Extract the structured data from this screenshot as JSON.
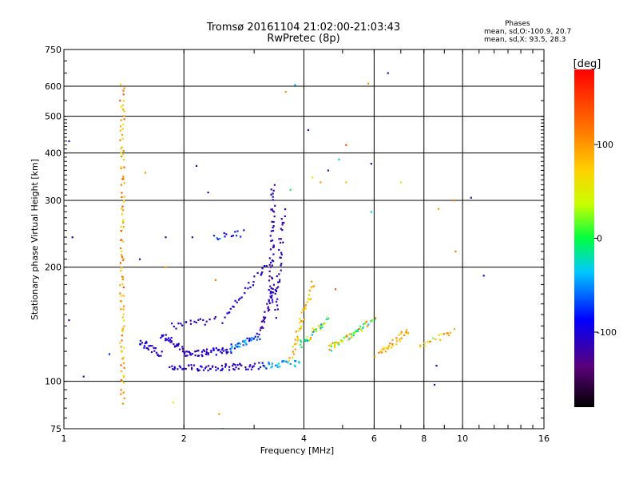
{
  "chart_data": {
    "type": "scatter",
    "title": "Tromsø 20161104 21:02:00-21:03:43",
    "subtitle": "RwPretec (8p)",
    "xlabel": "Frequency [MHz]",
    "ylabel": "Stationary phase Virtual Height [km]",
    "x_scale": "log",
    "y_scale": "log",
    "xlim": [
      1,
      16
    ],
    "ylim": [
      75,
      750
    ],
    "x_ticks": [
      1,
      2,
      4,
      6,
      8,
      10,
      16
    ],
    "y_ticks": [
      75,
      100,
      200,
      300,
      400,
      500,
      600,
      750
    ],
    "grid": true,
    "colorbar": {
      "label": "[deg]",
      "range": [
        -180,
        180
      ],
      "ticks": [
        100,
        0,
        -100
      ]
    },
    "stats": {
      "heading": "Phases",
      "line1": "mean, sd,O:-100.9, 20.7",
      "line2": "mean, sd,X: 93.5, 28.3"
    },
    "segments": [
      {
        "f": [
          1.4,
          1.4
        ],
        "h": [
          88,
          600
        ],
        "phase": [
          40,
          140
        ],
        "n": 110
      },
      {
        "f": [
          1.55,
          1.75
        ],
        "h": [
          128,
          118
        ],
        "phase": [
          -120,
          -80
        ],
        "n": 25
      },
      {
        "f": [
          1.75,
          2.05
        ],
        "h": [
          133,
          118
        ],
        "phase": [
          -125,
          -90
        ],
        "n": 35
      },
      {
        "f": [
          2.05,
          2.6
        ],
        "h": [
          118,
          121
        ],
        "phase": [
          -125,
          -90
        ],
        "n": 45
      },
      {
        "f": [
          2.6,
          3.1
        ],
        "h": [
          122,
          132
        ],
        "phase": [
          -100,
          -30
        ],
        "n": 35
      },
      {
        "f": [
          3.1,
          3.4
        ],
        "h": [
          135,
          180
        ],
        "phase": [
          -130,
          -100
        ],
        "n": 30
      },
      {
        "f": [
          3.3,
          3.35
        ],
        "h": [
          160,
          330
        ],
        "phase": [
          -130,
          -100
        ],
        "n": 45
      },
      {
        "f": [
          3.4,
          3.55
        ],
        "h": [
          150,
          280
        ],
        "phase": [
          -125,
          -95
        ],
        "n": 35
      },
      {
        "f": [
          1.85,
          3.2
        ],
        "h": [
          108,
          110
        ],
        "phase": [
          -125,
          -85
        ],
        "n": 75
      },
      {
        "f": [
          3.2,
          3.9
        ],
        "h": [
          110,
          112
        ],
        "phase": [
          -60,
          -20
        ],
        "n": 25
      },
      {
        "f": [
          1.85,
          2.4
        ],
        "h": [
          140,
          145
        ],
        "phase": [
          -125,
          -95
        ],
        "n": 20
      },
      {
        "f": [
          2.5,
          3.3
        ],
        "h": [
          145,
          210
        ],
        "phase": [
          -120,
          -90
        ],
        "n": 30
      },
      {
        "f": [
          2.4,
          2.8
        ],
        "h": [
          240,
          246
        ],
        "phase": [
          -110,
          -40
        ],
        "n": 14
      },
      {
        "f": [
          3.7,
          4.2
        ],
        "h": [
          115,
          180
        ],
        "phase": [
          60,
          110
        ],
        "n": 40
      },
      {
        "f": [
          3.9,
          4.6
        ],
        "h": [
          125,
          145
        ],
        "phase": [
          -60,
          110
        ],
        "n": 35
      },
      {
        "f": [
          4.6,
          6.0
        ],
        "h": [
          122,
          145
        ],
        "phase": [
          -40,
          120
        ],
        "n": 55
      },
      {
        "f": [
          6.1,
          7.3
        ],
        "h": [
          118,
          135
        ],
        "phase": [
          60,
          120
        ],
        "n": 35
      },
      {
        "f": [
          7.8,
          9.5
        ],
        "h": [
          125,
          135
        ],
        "phase": [
          20,
          120
        ],
        "n": 18
      }
    ],
    "points": [
      {
        "f": 1.03,
        "h": 430,
        "phase": -120
      },
      {
        "f": 1.05,
        "h": 240,
        "phase": -110
      },
      {
        "f": 1.03,
        "h": 145,
        "phase": -120
      },
      {
        "f": 1.12,
        "h": 103,
        "phase": -110
      },
      {
        "f": 1.55,
        "h": 210,
        "phase": -110
      },
      {
        "f": 1.6,
        "h": 355,
        "phase": 100
      },
      {
        "f": 1.8,
        "h": 240,
        "phase": -120
      },
      {
        "f": 1.88,
        "h": 88,
        "phase": 40
      },
      {
        "f": 2.1,
        "h": 240,
        "phase": -120
      },
      {
        "f": 2.3,
        "h": 315,
        "phase": -115
      },
      {
        "f": 2.45,
        "h": 82,
        "phase": 100
      },
      {
        "f": 2.5,
        "h": 75,
        "phase": 0
      },
      {
        "f": 2.15,
        "h": 370,
        "phase": -110
      },
      {
        "f": 3.6,
        "h": 580,
        "phase": 100
      },
      {
        "f": 3.8,
        "h": 605,
        "phase": -40
      },
      {
        "f": 4.1,
        "h": 460,
        "phase": -120
      },
      {
        "f": 4.2,
        "h": 345,
        "phase": 60
      },
      {
        "f": 4.4,
        "h": 335,
        "phase": 100
      },
      {
        "f": 4.6,
        "h": 360,
        "phase": -120
      },
      {
        "f": 4.9,
        "h": 385,
        "phase": -30
      },
      {
        "f": 5.1,
        "h": 420,
        "phase": 140
      },
      {
        "f": 5.1,
        "h": 335,
        "phase": 80
      },
      {
        "f": 5.8,
        "h": 610,
        "phase": 100
      },
      {
        "f": 5.9,
        "h": 375,
        "phase": -120
      },
      {
        "f": 5.9,
        "h": 280,
        "phase": -30
      },
      {
        "f": 6.5,
        "h": 650,
        "phase": -120
      },
      {
        "f": 7.0,
        "h": 335,
        "phase": 40
      },
      {
        "f": 8.7,
        "h": 285,
        "phase": 100
      },
      {
        "f": 8.5,
        "h": 98,
        "phase": -120
      },
      {
        "f": 8.6,
        "h": 110,
        "phase": -120
      },
      {
        "f": 9.5,
        "h": 300,
        "phase": 120
      },
      {
        "f": 9.6,
        "h": 220,
        "phase": 120
      },
      {
        "f": 10.5,
        "h": 305,
        "phase": -120
      },
      {
        "f": 11.3,
        "h": 190,
        "phase": -100
      },
      {
        "f": 1.8,
        "h": 200,
        "phase": 100
      },
      {
        "f": 2.4,
        "h": 185,
        "phase": 120
      },
      {
        "f": 3.7,
        "h": 320,
        "phase": 0
      },
      {
        "f": 1.3,
        "h": 118,
        "phase": -80
      },
      {
        "f": 4.8,
        "h": 175,
        "phase": 140
      }
    ]
  }
}
